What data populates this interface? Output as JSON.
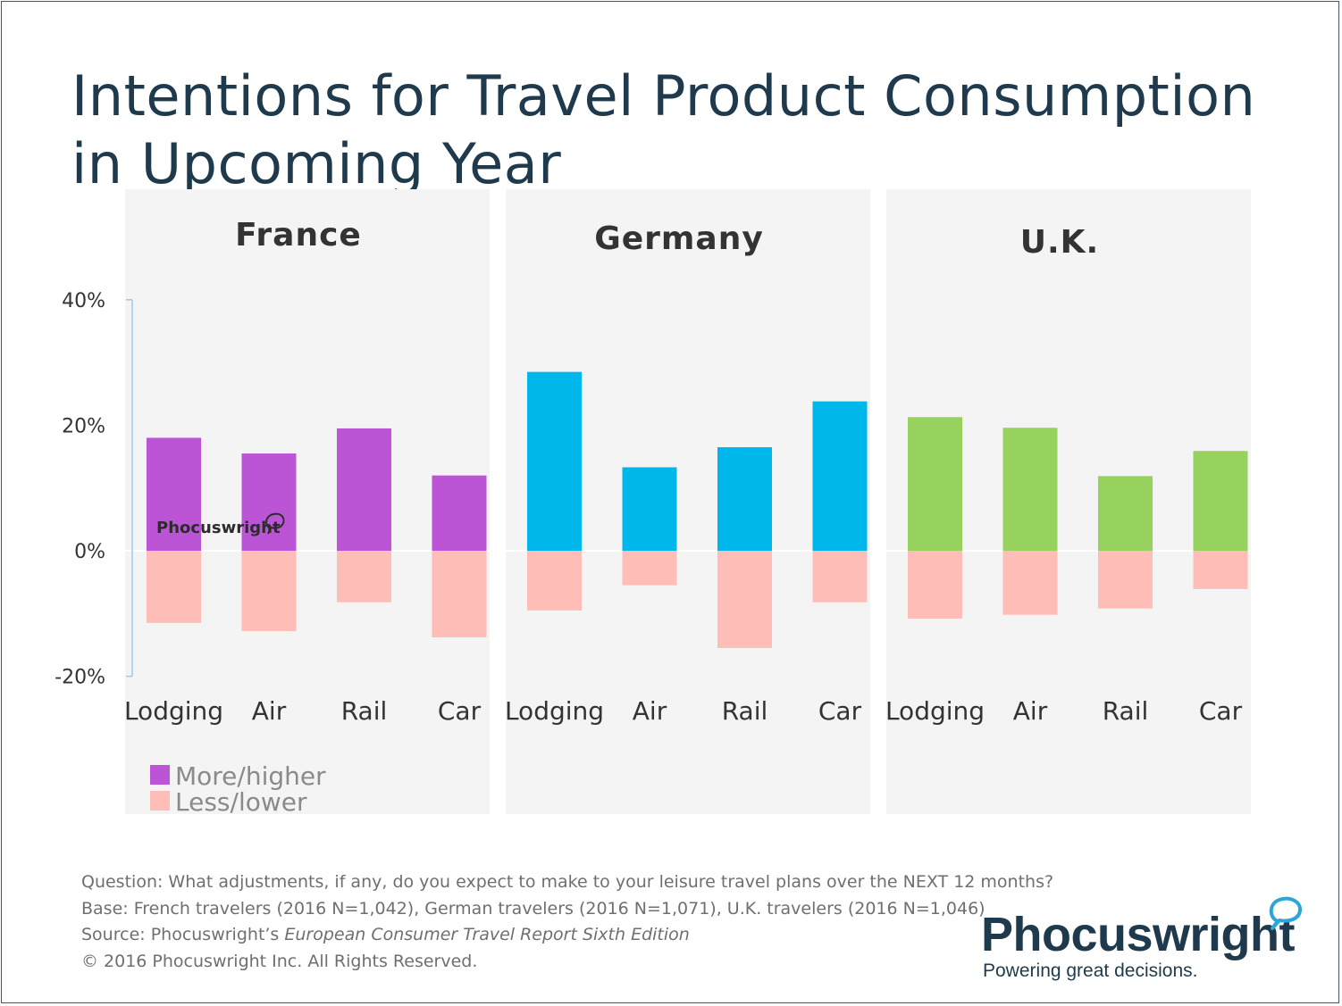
{
  "title": "Intentions for Travel Product Consumption in Upcoming Year",
  "colors": {
    "panel_bg": "#f4f4f4",
    "less": "#ffbdb7",
    "axis": "#9ec9e8",
    "title": "#1f3a4d"
  },
  "chart_data": {
    "type": "bar",
    "stacking": "diverging",
    "y_ticks": [
      "40%",
      "20%",
      "0%",
      "-20%"
    ],
    "ylim": [
      -20,
      40
    ],
    "panels": [
      {
        "name": "France",
        "color": "#bb55d6",
        "categories": [
          "Lodging",
          "Air",
          "Rail",
          "Car"
        ],
        "series": [
          {
            "name": "More/higher",
            "values": [
              18,
              15.5,
              19.5,
              12
            ]
          },
          {
            "name": "Less/lower",
            "values": [
              -11.5,
              -12.8,
              -8.2,
              -13.8
            ]
          }
        ]
      },
      {
        "name": "Germany",
        "color": "#00b7eb",
        "categories": [
          "Lodging",
          "Air",
          "Rail",
          "Car"
        ],
        "series": [
          {
            "name": "More/higher",
            "values": [
              28.5,
              13.3,
              16.5,
              23.8
            ]
          },
          {
            "name": "Less/lower",
            "values": [
              -9.5,
              -5.5,
              -15.5,
              -8.2
            ]
          }
        ]
      },
      {
        "name": "U.K.",
        "color": "#97d25f",
        "categories": [
          "Lodging",
          "Air",
          "Rail",
          "Car"
        ],
        "series": [
          {
            "name": "More/higher",
            "values": [
              21.3,
              19.6,
              11.9,
              15.9
            ]
          },
          {
            "name": "Less/lower",
            "values": [
              -10.8,
              -10.2,
              -9.2,
              -6.1
            ]
          }
        ]
      }
    ],
    "legend": {
      "position": "bottom-left",
      "items": [
        {
          "label": "More/higher",
          "color": "#bb55d6"
        },
        {
          "label": "Less/lower",
          "color": "#ffbdb7"
        }
      ]
    },
    "watermark": "Phocuswright"
  },
  "footnotes": {
    "question": "Question: What adjustments, if any, do you expect to make to your leisure travel plans over the NEXT 12 months?",
    "base": "Base: French travelers (2016 N=1,042), German travelers (2016 N=1,071), U.K. travelers (2016 N=1,046)",
    "source_prefix": "Source: Phocuswright’s ",
    "source_title": "European Consumer Travel Report Sixth Edition",
    "copyright": "© 2016 Phocuswright Inc. All Rights Reserved."
  },
  "logo": {
    "name": "Phocuswright",
    "tagline": "Powering great decisions.",
    "accent": "#2aa7d6"
  }
}
